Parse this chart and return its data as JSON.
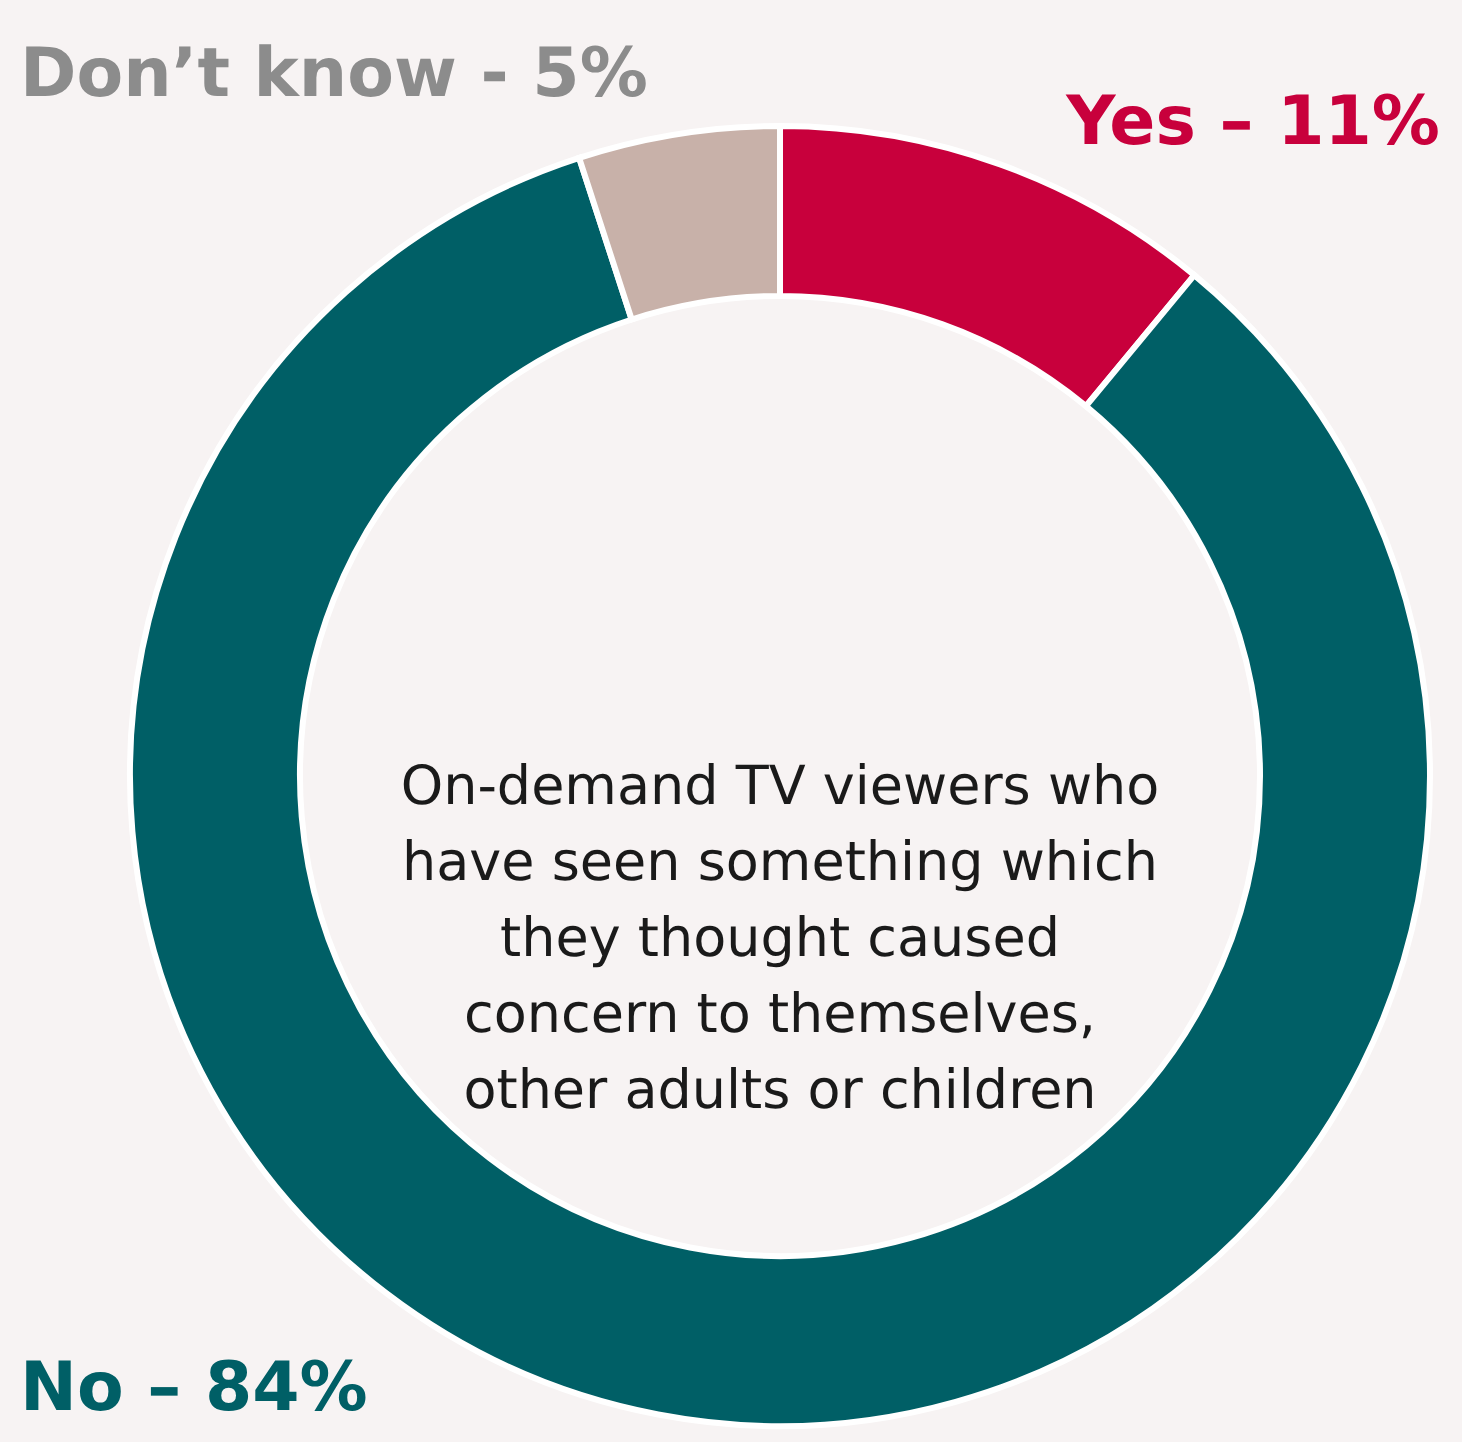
{
  "chart_data": {
    "type": "donut",
    "categories": [
      "Yes – 11%",
      "No – 84%",
      "Don’t know - 5%"
    ],
    "values": [
      11,
      84,
      5
    ],
    "colors": [
      "#c8003c",
      "#005f66",
      "#c8b1a9"
    ],
    "annotations": [
      "On-demand TV viewers who have seen something which they thought caused concern to themselves, other adults or children"
    ]
  }
}
